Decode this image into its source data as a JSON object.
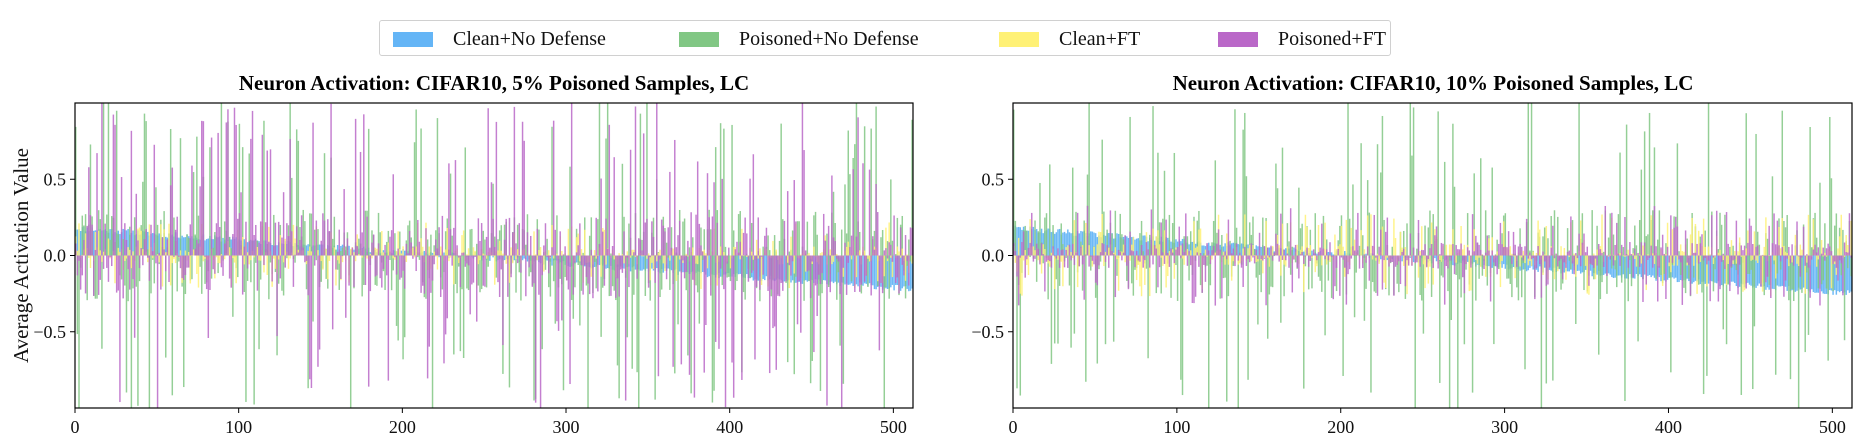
{
  "legend": [
    {
      "label": "Clean+No Defense",
      "color": "#64b5f6"
    },
    {
      "label": "Poisoned+No Defense",
      "color": "#81c784"
    },
    {
      "label": "Clean+FT",
      "color": "#fff176"
    },
    {
      "label": "Poisoned+FT",
      "color": "#ba68c8"
    }
  ],
  "chart_data": [
    {
      "type": "bar",
      "title": "Neuron Activation: CIFAR10, 5% Poisoned Samples, LC",
      "ylabel": "Average Activation Value",
      "xlim": [
        0,
        512
      ],
      "ylim": [
        -1.0,
        1.0
      ],
      "xticks": [
        "0",
        "100",
        "200",
        "300",
        "400",
        "500"
      ],
      "yticks": [
        "0.5",
        "0.0",
        "−0.5"
      ],
      "n_neurons": 512,
      "series": [
        {
          "name": "Clean+No Defense",
          "trend": "sorted descending",
          "start": 0.18,
          "end": -0.22
        },
        {
          "name": "Poisoned+No Defense",
          "amplitude": 1.0
        },
        {
          "name": "Clean+FT",
          "amplitude": 0.2
        },
        {
          "name": "Poisoned+FT",
          "amplitude": 0.95
        }
      ]
    },
    {
      "type": "bar",
      "title": "Neuron Activation: CIFAR10, 10% Poisoned Samples, LC",
      "ylabel": "",
      "xlim": [
        0,
        512
      ],
      "ylim": [
        -1.0,
        1.0
      ],
      "xticks": [
        "0",
        "100",
        "200",
        "300",
        "400",
        "500"
      ],
      "yticks": [
        "0.5",
        "0.0",
        "−0.5"
      ],
      "n_neurons": 512,
      "series": [
        {
          "name": "Clean+No Defense",
          "trend": "sorted descending",
          "start": 0.18,
          "end": -0.25
        },
        {
          "name": "Poisoned+No Defense",
          "amplitude": 1.0
        },
        {
          "name": "Clean+FT",
          "amplitude": 0.25
        },
        {
          "name": "Poisoned+FT",
          "amplitude": 0.3
        }
      ]
    }
  ]
}
